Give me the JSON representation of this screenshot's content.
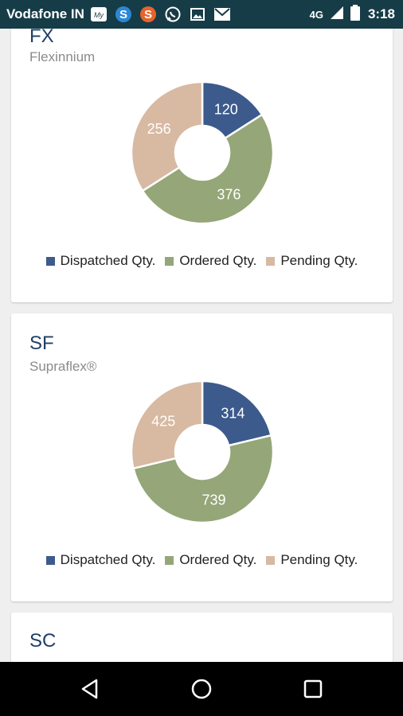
{
  "status_bar": {
    "carrier": "Vodafone IN",
    "network": "4G",
    "time": "3:18",
    "notification_icons": [
      "myvodafone-icon",
      "s-app-blue-icon",
      "s-app-orange-icon",
      "whatsapp-icon",
      "gallery-icon",
      "gmail-icon"
    ]
  },
  "cards": [
    {
      "code": "FX",
      "brand": "Flexinnium",
      "chart_data": {
        "type": "pie",
        "categories": [
          "Dispatched Qty.",
          "Ordered Qty.",
          "Pending Qty."
        ],
        "values": [
          120,
          376,
          256
        ]
      }
    },
    {
      "code": "SF",
      "brand": "Supraflex®",
      "chart_data": {
        "type": "pie",
        "categories": [
          "Dispatched Qty.",
          "Ordered Qty.",
          "Pending Qty."
        ],
        "values": [
          314,
          739,
          425
        ]
      }
    },
    {
      "code": "SC",
      "brand": ""
    }
  ],
  "legend": {
    "dispatched": "Dispatched Qty.",
    "ordered": "Ordered Qty.",
    "pending": "Pending Qty."
  },
  "colors": {
    "dispatched": "#3c5a8c",
    "ordered": "#95a678",
    "pending": "#d8b9a2",
    "status_bar": "#163c47"
  },
  "nav_bar": {
    "buttons": [
      "back-icon",
      "home-icon",
      "recents-icon"
    ]
  }
}
